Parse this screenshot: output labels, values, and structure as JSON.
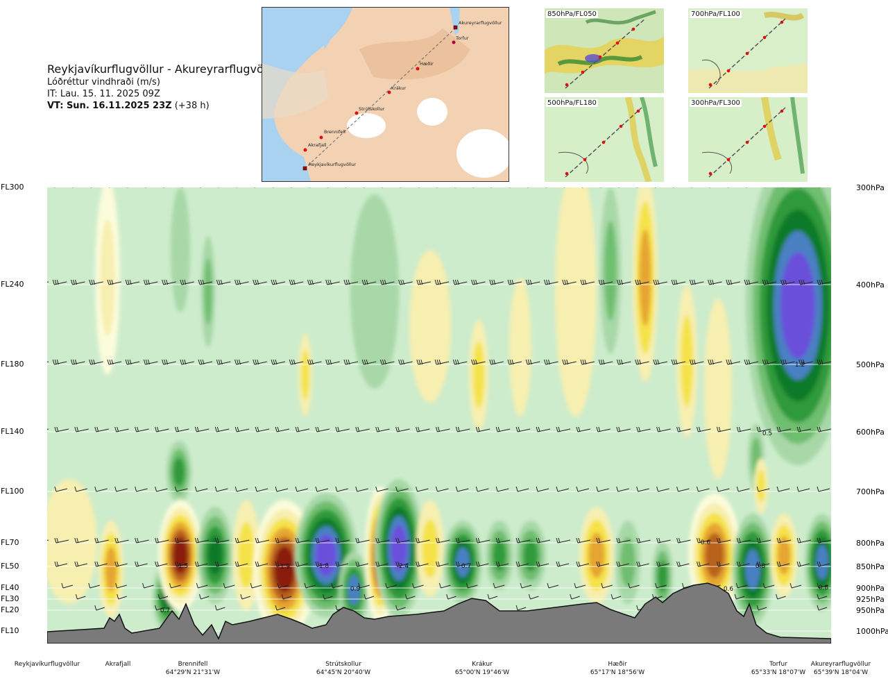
{
  "header": {
    "title": "Reykjavíkurflugvöllur - Akureyrarflugvöllur",
    "subtitle": "Lóðréttur vindhraði (m/s)",
    "it_label": "IT: Lau. 15. 11. 2025 09Z",
    "vt_bold": "VT: Sun. 16.11.2025 23Z",
    "vt_offset": "(+38 h)"
  },
  "map": {
    "places": [
      "Akureyrarflugvöllur",
      "Torfur",
      "Hæðir",
      "Krákur",
      "Strútskollur",
      "Brennifell",
      "Akrafjall",
      "Reykjavíkurflugvöllur"
    ]
  },
  "thumbnails": [
    {
      "label": "850hPa/FL050"
    },
    {
      "label": "700hPa/FL100"
    },
    {
      "label": "500hPa/FL180"
    },
    {
      "label": "300hPa/FL300"
    }
  ],
  "chart_data": {
    "type": "heatmap",
    "title": "Reykjavíkurflugvöllur - Akureyrarflugvöllur",
    "subtitle": "Lóðréttur vindhraði (m/s)",
    "left_axis_levels": [
      "FL300",
      "FL240",
      "FL180",
      "FL140",
      "FL100",
      "FL70",
      "FL50",
      "FL40",
      "FL30",
      "FL20",
      "FL10"
    ],
    "right_axis_levels": [
      "300hPa",
      "400hPa",
      "500hPa",
      "600hPa",
      "700hPa",
      "800hPa",
      "850hPa",
      "900hPa",
      "925hPa",
      "950hPa",
      "1000hPa"
    ],
    "x_locations": [
      {
        "name": "Reykjavíkurflugvöllur",
        "coord": ""
      },
      {
        "name": "Akrafjall",
        "coord": ""
      },
      {
        "name": "Brennifell",
        "coord": "64°29'N 21°31'W"
      },
      {
        "name": "Strútskollur",
        "coord": "64°45'N 20°40'W"
      },
      {
        "name": "Krákur",
        "coord": "65°00'N 19°46'W"
      },
      {
        "name": "Hæðir",
        "coord": "65°17'N 18°56'W"
      },
      {
        "name": "Torfur",
        "coord": "65°33'N 18°07'W"
      },
      {
        "name": "Akureyrarflugvöllur",
        "coord": "65°39'N 18°04'W"
      }
    ],
    "contour_labels": [
      "0.7",
      "1.5",
      "1.9",
      "1.8",
      "2.4",
      "0.9",
      "0.7",
      "0.6",
      "0.6",
      "0.8",
      "0.8",
      "0.5",
      "1.2"
    ],
    "colors": {
      "strong_down": "#8a1a0e",
      "down_brown": "#b8621a",
      "down_orange": "#e6a531",
      "down_yellow": "#f5e24a",
      "down_pale": "#f7efb0",
      "neutral_pale": "#fbfcdc",
      "background": "#cdeccc",
      "up_light": "#a8d8a8",
      "up_green": "#6fbe6f",
      "up_mid": "#2f9a3a",
      "up_dark": "#117a2c",
      "up_steel": "#4a80c2",
      "up_violet": "#6a4fdb",
      "terrain": "#7a7a7a"
    },
    "legend": "none",
    "grid": "horizontal lines at flight levels"
  }
}
